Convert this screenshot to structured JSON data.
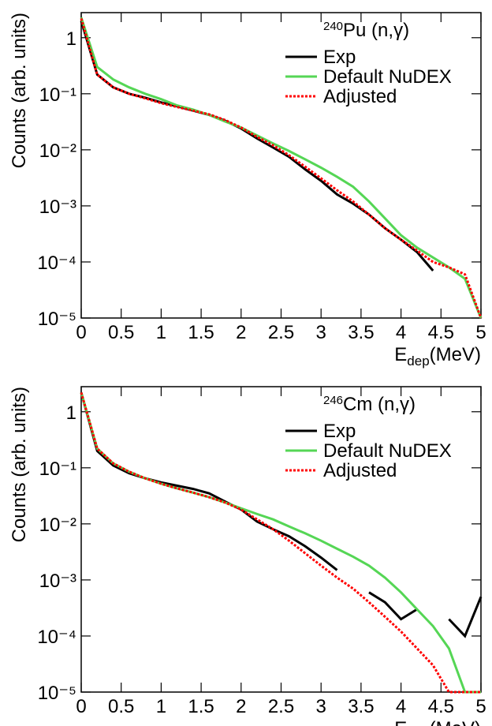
{
  "chart_data": [
    {
      "type": "line",
      "log_y": true,
      "legend": "upper right",
      "annotation": {
        "sup": "240",
        "main": "Pu (n,γ)"
      },
      "x_label": {
        "main": "E",
        "sub": "dep",
        "unit": "(MeV)"
      },
      "y_label": "Counts (arb. units)",
      "x": [
        0,
        0.2,
        0.4,
        0.6,
        0.8,
        1.0,
        1.2,
        1.4,
        1.6,
        1.8,
        2.0,
        2.2,
        2.4,
        2.6,
        2.8,
        3.0,
        3.2,
        3.4,
        3.6,
        3.8,
        4.0,
        4.2,
        4.4,
        4.6,
        4.8,
        5.0
      ],
      "series": [
        {
          "name": "Exp",
          "color": "#000000",
          "dashed": false,
          "values": [
            2,
            0.22,
            0.13,
            0.1,
            0.085,
            0.07,
            0.06,
            0.05,
            0.042,
            0.033,
            0.024,
            0.016,
            0.011,
            0.0075,
            0.0045,
            0.0028,
            0.0016,
            0.0011,
            0.0007,
            0.0004,
            0.00025,
            0.00015,
            7e-05,
            null,
            5e-05,
            null
          ]
        },
        {
          "name": "Default NuDEX",
          "color": "#55d655",
          "dashed": false,
          "values": [
            2.3,
            0.3,
            0.18,
            0.13,
            0.1,
            0.08,
            0.062,
            0.052,
            0.042,
            0.032,
            0.025,
            0.018,
            0.013,
            0.0095,
            0.0068,
            0.0048,
            0.0033,
            0.0022,
            0.0012,
            0.0006,
            0.0003,
            0.00018,
            0.00012,
            8e-05,
            5e-05,
            1e-05
          ]
        },
        {
          "name": "Adjusted",
          "color": "#ff0000",
          "dashed": true,
          "values": [
            2.2,
            0.22,
            0.13,
            0.1,
            0.083,
            0.068,
            0.058,
            0.05,
            0.043,
            0.034,
            0.025,
            0.017,
            0.012,
            0.008,
            0.005,
            0.0031,
            0.0019,
            0.0012,
            0.0007,
            0.0004,
            0.00025,
            0.00016,
            0.0001,
            8e-05,
            6e-05,
            1e-05
          ]
        }
      ],
      "xlim": [
        0,
        5
      ],
      "ylim": [
        1e-05,
        2.8
      ],
      "xticks": [
        0,
        0.5,
        1,
        1.5,
        2,
        2.5,
        3,
        3.5,
        4,
        4.5,
        5
      ],
      "yticks": [
        {
          "value": 1e-05,
          "label": "10⁻⁵"
        },
        {
          "value": 0.0001,
          "label": "10⁻⁴"
        },
        {
          "value": 0.001,
          "label": "10⁻³"
        },
        {
          "value": 0.01,
          "label": "10⁻²"
        },
        {
          "value": 0.1,
          "label": "10⁻¹"
        },
        1
      ]
    },
    {
      "type": "line",
      "log_y": true,
      "legend": "upper right",
      "annotation": {
        "sup": "246",
        "main": "Cm (n,γ)"
      },
      "x_label": {
        "main": "E",
        "sub": "dep",
        "unit": "(MeV)"
      },
      "y_label": "Counts (arb. units)",
      "x": [
        0,
        0.2,
        0.4,
        0.6,
        0.8,
        1.0,
        1.2,
        1.4,
        1.6,
        1.8,
        2.0,
        2.2,
        2.4,
        2.6,
        2.8,
        3.0,
        3.2,
        3.4,
        3.6,
        3.8,
        4.0,
        4.2,
        4.4,
        4.6,
        4.8,
        5.0
      ],
      "series": [
        {
          "name": "Exp",
          "color": "#000000",
          "dashed": false,
          "values": [
            2.2,
            0.2,
            0.11,
            0.08,
            0.065,
            0.055,
            0.048,
            0.042,
            0.035,
            0.025,
            0.018,
            0.011,
            0.008,
            0.006,
            0.004,
            0.0025,
            0.0015,
            null,
            0.0006,
            0.0004,
            0.0002,
            0.0003,
            null,
            0.0002,
            0.0001,
            0.0005
          ]
        },
        {
          "name": "Default NuDEX",
          "color": "#55d655",
          "dashed": false,
          "values": [
            2.2,
            0.22,
            0.12,
            0.085,
            0.065,
            0.052,
            0.043,
            0.036,
            0.03,
            0.024,
            0.019,
            0.015,
            0.012,
            0.009,
            0.0068,
            0.005,
            0.0036,
            0.0026,
            0.0018,
            0.0011,
            0.0006,
            0.0003,
            0.00015,
            6e-05,
            1e-05,
            1e-05
          ]
        },
        {
          "name": "Adjusted",
          "color": "#ff0000",
          "dashed": true,
          "values": [
            2.2,
            0.22,
            0.12,
            0.085,
            0.065,
            0.052,
            0.043,
            0.036,
            0.03,
            0.024,
            0.018,
            0.012,
            0.008,
            0.005,
            0.003,
            0.0018,
            0.0011,
            0.0007,
            0.0004,
            0.00022,
            0.00012,
            6e-05,
            3e-05,
            1e-05,
            1e-05,
            1e-05
          ]
        }
      ],
      "xlim": [
        0,
        5
      ],
      "ylim": [
        1e-05,
        2.8
      ],
      "xticks": [
        0,
        0.5,
        1,
        1.5,
        2,
        2.5,
        3,
        3.5,
        4,
        4.5,
        5
      ],
      "yticks": [
        {
          "value": 1e-05,
          "label": "10⁻⁵"
        },
        {
          "value": 0.0001,
          "label": "10⁻⁴"
        },
        {
          "value": 0.001,
          "label": "10⁻³"
        },
        {
          "value": 0.01,
          "label": "10⁻²"
        },
        {
          "value": 0.1,
          "label": "10⁻¹"
        },
        1
      ]
    }
  ]
}
